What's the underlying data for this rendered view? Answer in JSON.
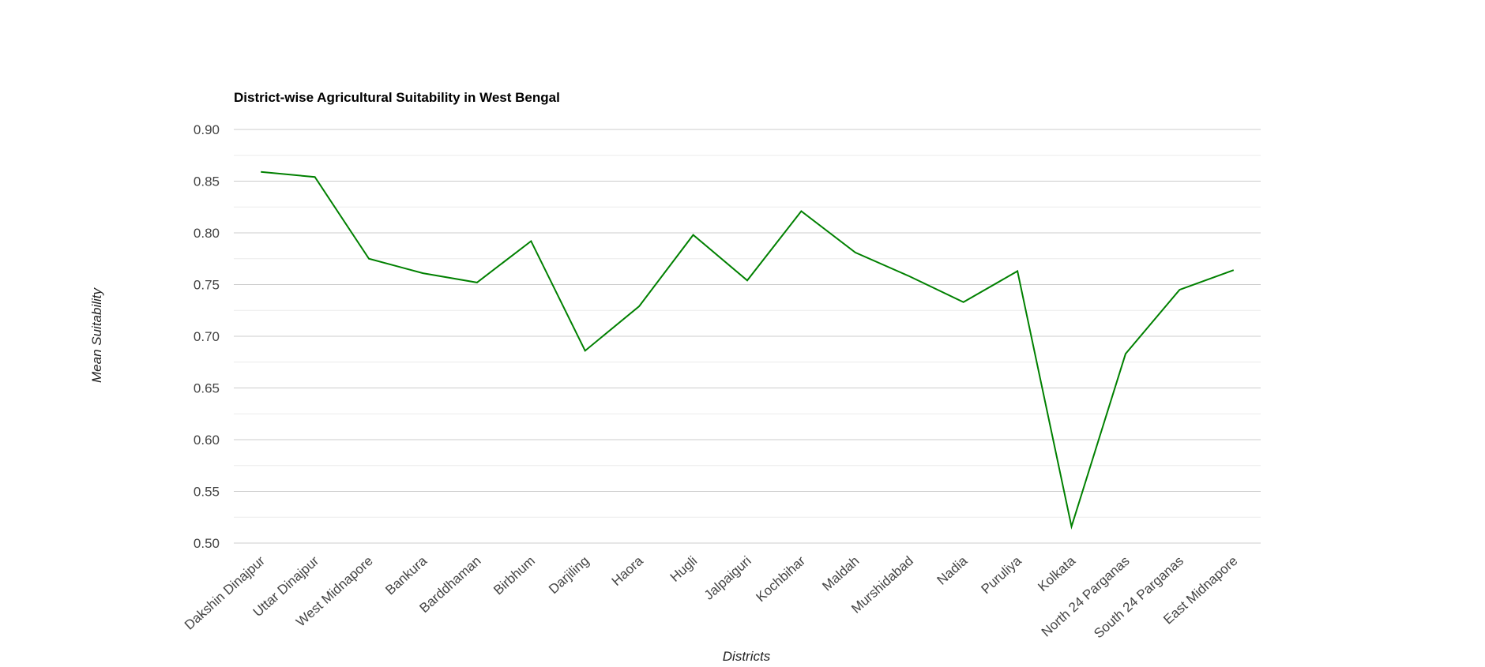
{
  "chart_data": {
    "type": "line",
    "title": "District-wise Agricultural Suitability in West Bengal",
    "xlabel": "Districts",
    "ylabel": "Mean Suitability",
    "categories": [
      "Dakshin Dinajpur",
      "Uttar Dinajpur",
      "West Midnapore",
      "Bankura",
      "Barddhaman",
      "Birbhum",
      "Darjiling",
      "Haora",
      "Hugli",
      "Jalpaiguri",
      "Kochbihar",
      "Maldah",
      "Murshidabad",
      "Nadia",
      "Puruliya",
      "Kolkata",
      "North 24 Parganas",
      "South 24 Parganas",
      "East Midnapore"
    ],
    "series": [
      {
        "values": [
          0.859,
          0.854,
          0.775,
          0.761,
          0.752,
          0.792,
          0.686,
          0.729,
          0.798,
          0.754,
          0.821,
          0.781,
          0.758,
          0.733,
          0.763,
          0.516,
          0.683,
          0.745,
          0.764
        ],
        "color": "#008000"
      }
    ],
    "ylim": [
      0.5,
      0.9
    ],
    "yticks": [
      "0.90",
      "0.85",
      "0.80",
      "0.75",
      "0.70",
      "0.65",
      "0.60",
      "0.55",
      "0.50"
    ],
    "grid": true,
    "minor_grid": true,
    "legend": "none"
  }
}
